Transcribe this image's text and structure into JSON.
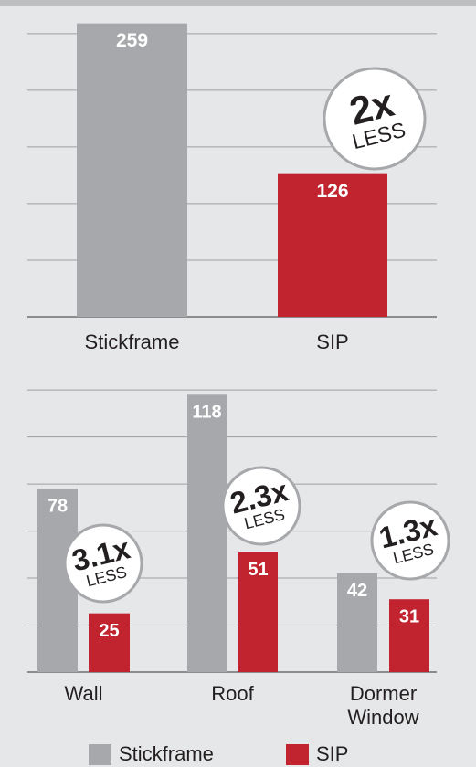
{
  "chart_data": [
    {
      "type": "bar",
      "categories": [
        "Stickframe",
        "SIP"
      ],
      "values": [
        259,
        126
      ],
      "colors": [
        "#a6a8ab",
        "#c1232f"
      ],
      "ylim": [
        0,
        270
      ],
      "yticks": [
        50,
        100,
        150,
        200,
        250
      ],
      "grid": true,
      "annotations": [
        {
          "text": "2x",
          "subtext": "LESS"
        }
      ]
    },
    {
      "type": "grouped_bar",
      "categories": [
        "Wall",
        "Roof",
        "Dormer Window"
      ],
      "series": [
        {
          "name": "Stickframe",
          "color": "#a6a8ab",
          "values": [
            78,
            118,
            42
          ]
        },
        {
          "name": "SIP",
          "color": "#c1232f",
          "values": [
            25,
            51,
            31
          ]
        }
      ],
      "ylim": [
        0,
        122
      ],
      "yticks": [
        20,
        40,
        60,
        80,
        100,
        120
      ],
      "grid": true,
      "legend": "bottom",
      "annotations": [
        {
          "text": "3.1x",
          "subtext": "LESS"
        },
        {
          "text": "2.3x",
          "subtext": "LESS"
        },
        {
          "text": "1.3x",
          "subtext": "LESS"
        }
      ]
    }
  ]
}
